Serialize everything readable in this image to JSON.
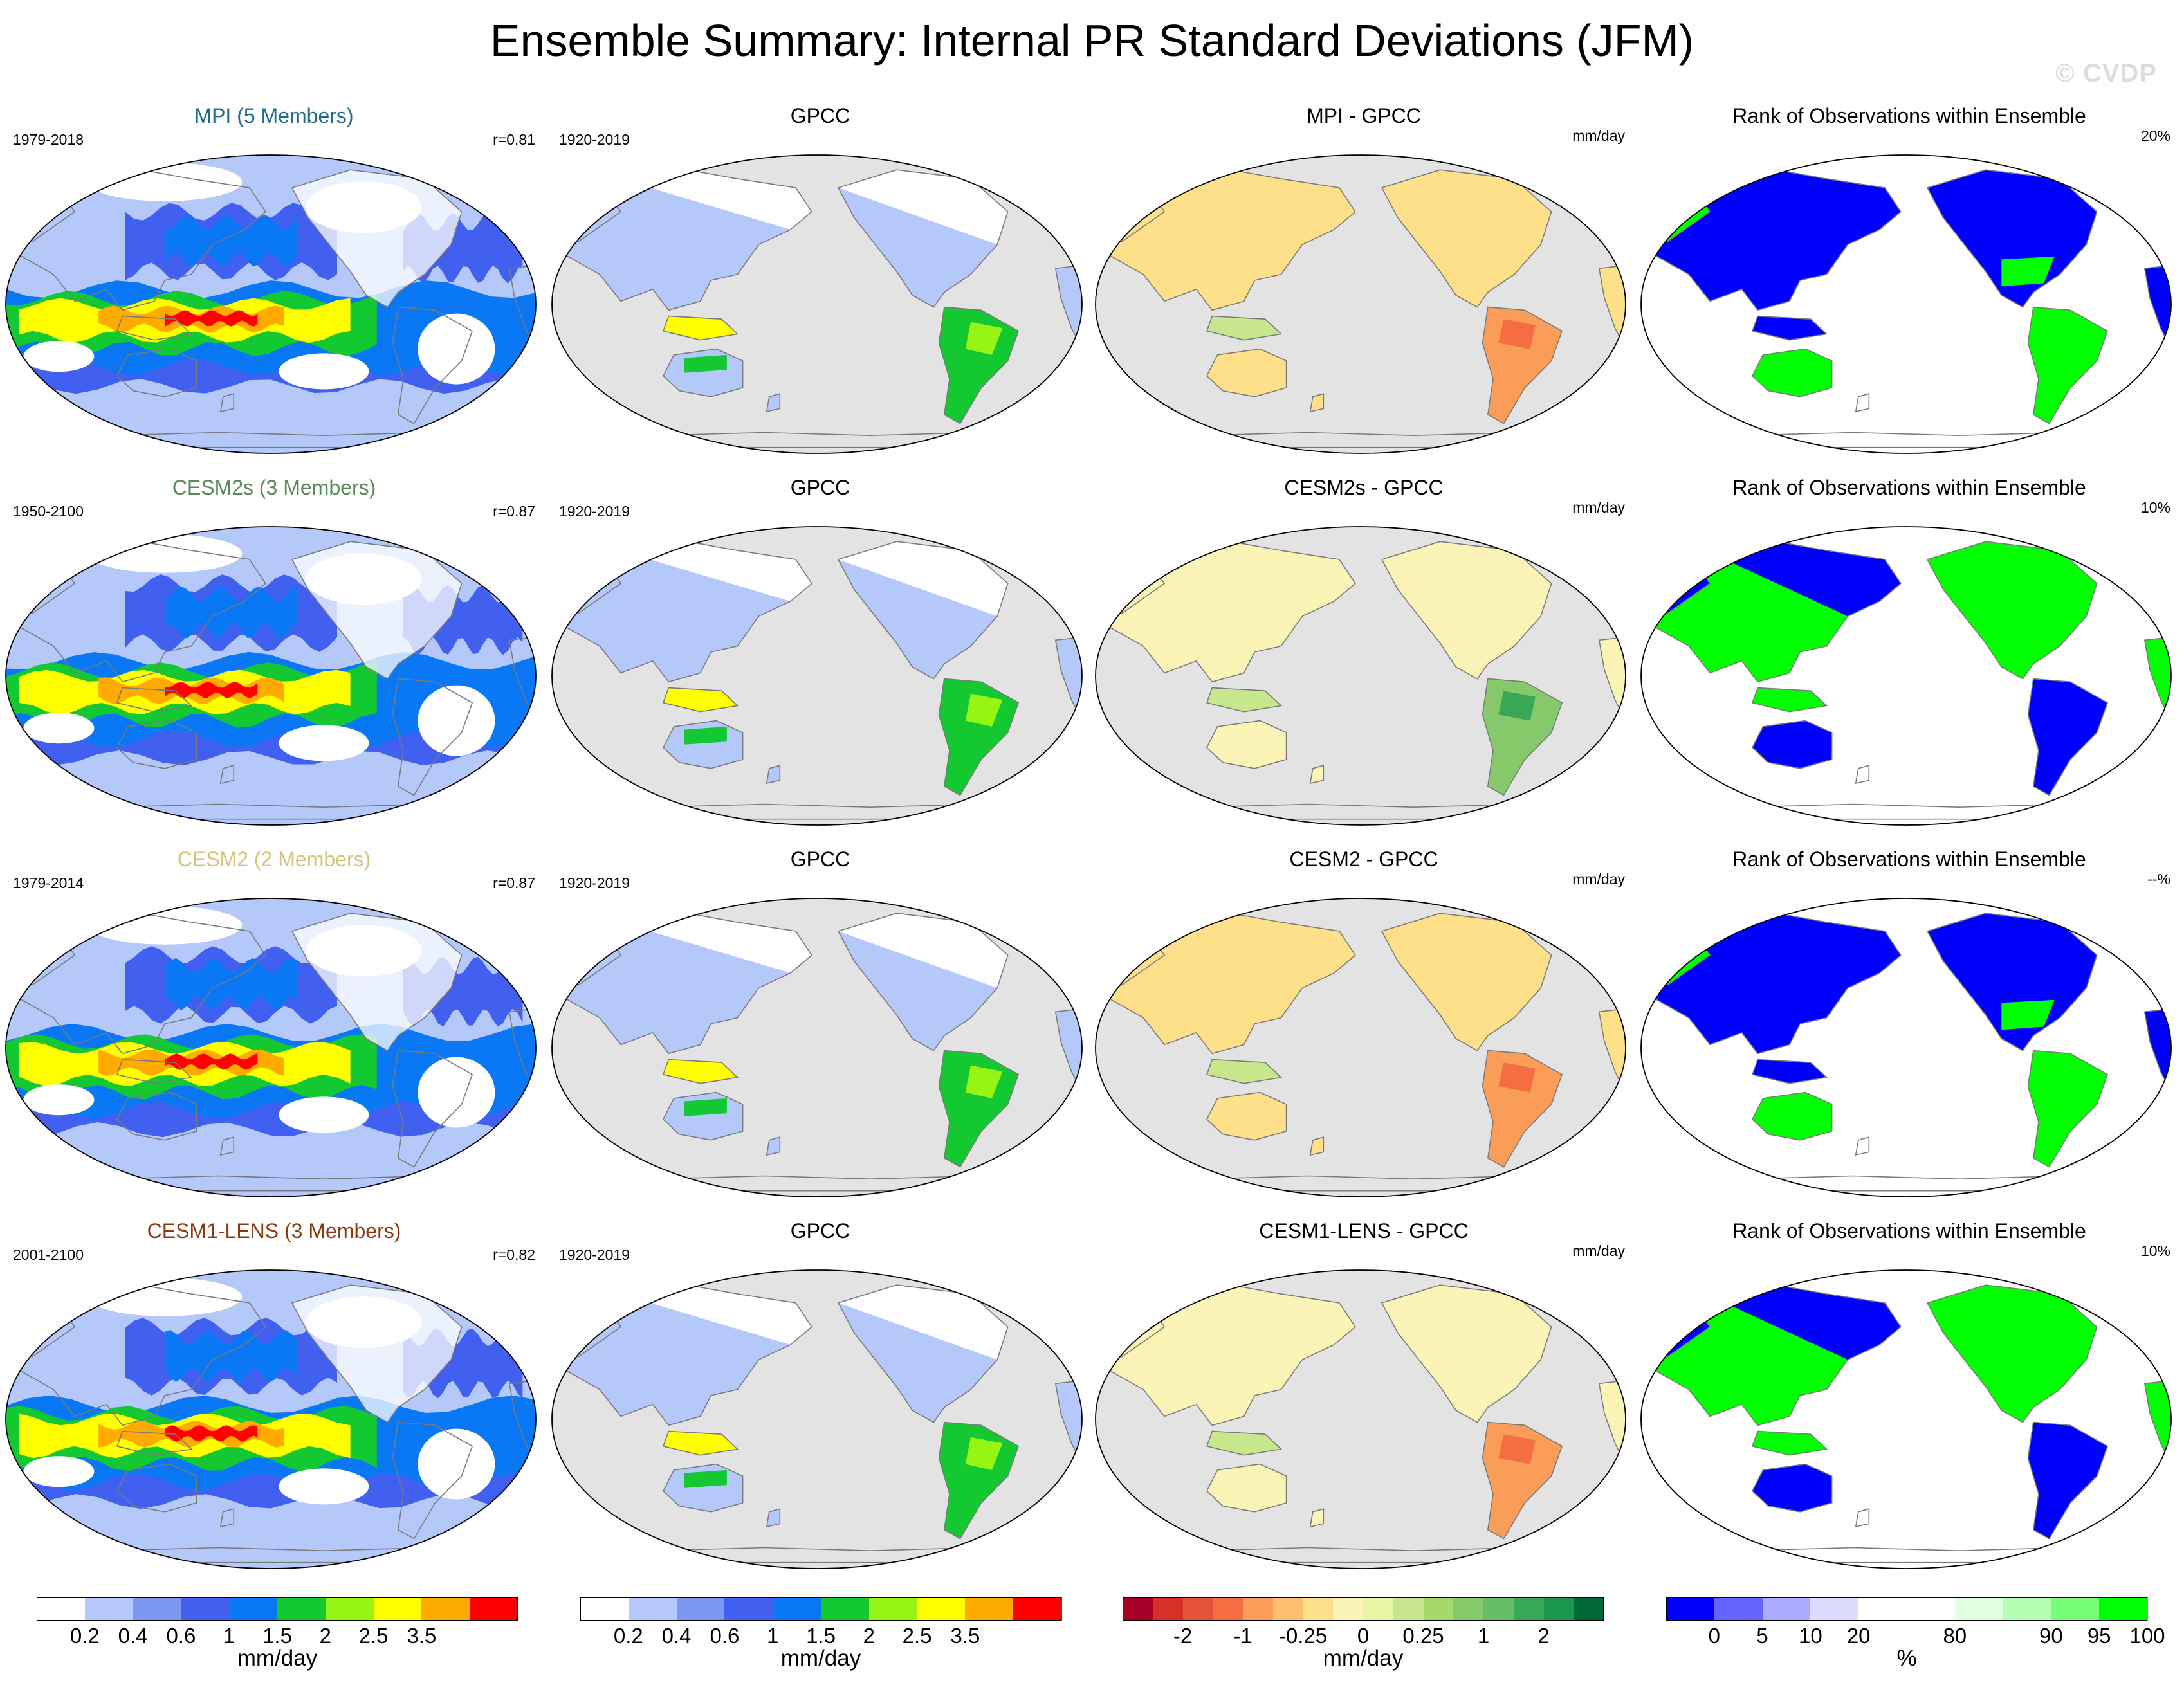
{
  "title": "Ensemble Summary: Internal PR Standard Deviations (JFM)",
  "watermark": "© CVDP",
  "rows": [
    {
      "ens": {
        "title": "MPI (5 Members)",
        "title_color": "#1e6b8c",
        "years": "1979-2018",
        "r": "r=0.81"
      },
      "obs": {
        "title": "GPCC",
        "years": "1920-2019"
      },
      "diff": {
        "title": "MPI - GPCC",
        "unit": "mm/day"
      },
      "rank": {
        "title": "Rank of Observations within Ensemble",
        "pct": "20%"
      }
    },
    {
      "ens": {
        "title": "CESM2s (3 Members)",
        "title_color": "#5a8a5a",
        "years": "1950-2100",
        "r": "r=0.87"
      },
      "obs": {
        "title": "GPCC",
        "years": "1920-2019"
      },
      "diff": {
        "title": "CESM2s - GPCC",
        "unit": "mm/day"
      },
      "rank": {
        "title": "Rank of Observations within Ensemble",
        "pct": "10%"
      }
    },
    {
      "ens": {
        "title": "CESM2 (2 Members)",
        "title_color": "#d7c27a",
        "years": "1979-2014",
        "r": "r=0.87"
      },
      "obs": {
        "title": "GPCC",
        "years": "1920-2019"
      },
      "diff": {
        "title": "CESM2 - GPCC",
        "unit": "mm/day"
      },
      "rank": {
        "title": "Rank of Observations within Ensemble",
        "pct": "--%"
      }
    },
    {
      "ens": {
        "title": "CESM1-LENS (3 Members)",
        "title_color": "#8b3a0e",
        "years": "2001-2100",
        "r": "r=0.82"
      },
      "obs": {
        "title": "GPCC",
        "years": "1920-2019"
      },
      "diff": {
        "title": "CESM1-LENS - GPCC",
        "unit": "mm/day"
      },
      "rank": {
        "title": "Rank of Observations within Ensemble",
        "pct": "10%"
      }
    }
  ],
  "colorbars": [
    {
      "colors": [
        "#ffffff",
        "#b4c8fa",
        "#7d96f0",
        "#4160f0",
        "#0a78f5",
        "#14c832",
        "#96f514",
        "#ffff00",
        "#ffaa00",
        "#ff0000"
      ],
      "ticks": [
        "0.2",
        "0.4",
        "0.6",
        "1",
        "1.5",
        "2",
        "2.5",
        "3.5"
      ],
      "unit": "mm/day"
    },
    {
      "colors": [
        "#ffffff",
        "#b4c8fa",
        "#7d96f0",
        "#4160f0",
        "#0a78f5",
        "#14c832",
        "#96f514",
        "#ffff00",
        "#ffaa00",
        "#ff0000"
      ],
      "ticks": [
        "0.2",
        "0.4",
        "0.6",
        "1",
        "1.5",
        "2",
        "2.5",
        "3.5"
      ],
      "unit": "mm/day"
    },
    {
      "colors": [
        "#a50026",
        "#d73027",
        "#e5523a",
        "#f46d43",
        "#f99d59",
        "#fdbf6f",
        "#fee08b",
        "#fbf4b6",
        "#e6f5a6",
        "#c7e78c",
        "#a6d96a",
        "#86c96a",
        "#66bd63",
        "#39a758",
        "#1a9850",
        "#006837"
      ],
      "ticks": [
        "-2",
        "-1",
        "-0.25",
        "0",
        "0.25",
        "1",
        "2"
      ],
      "unit": "mm/day"
    },
    {
      "colors": [
        "#0000ff",
        "#6464ff",
        "#aaaaff",
        "#dcdcff",
        "#ffffff",
        "#ffffff",
        "#e0ffe0",
        "#b4ffb4",
        "#78ff78",
        "#00ff00"
      ],
      "ticks": [
        "0",
        "5",
        "10",
        "20",
        "80",
        "90",
        "95",
        "100"
      ],
      "unit": "%"
    }
  ]
}
